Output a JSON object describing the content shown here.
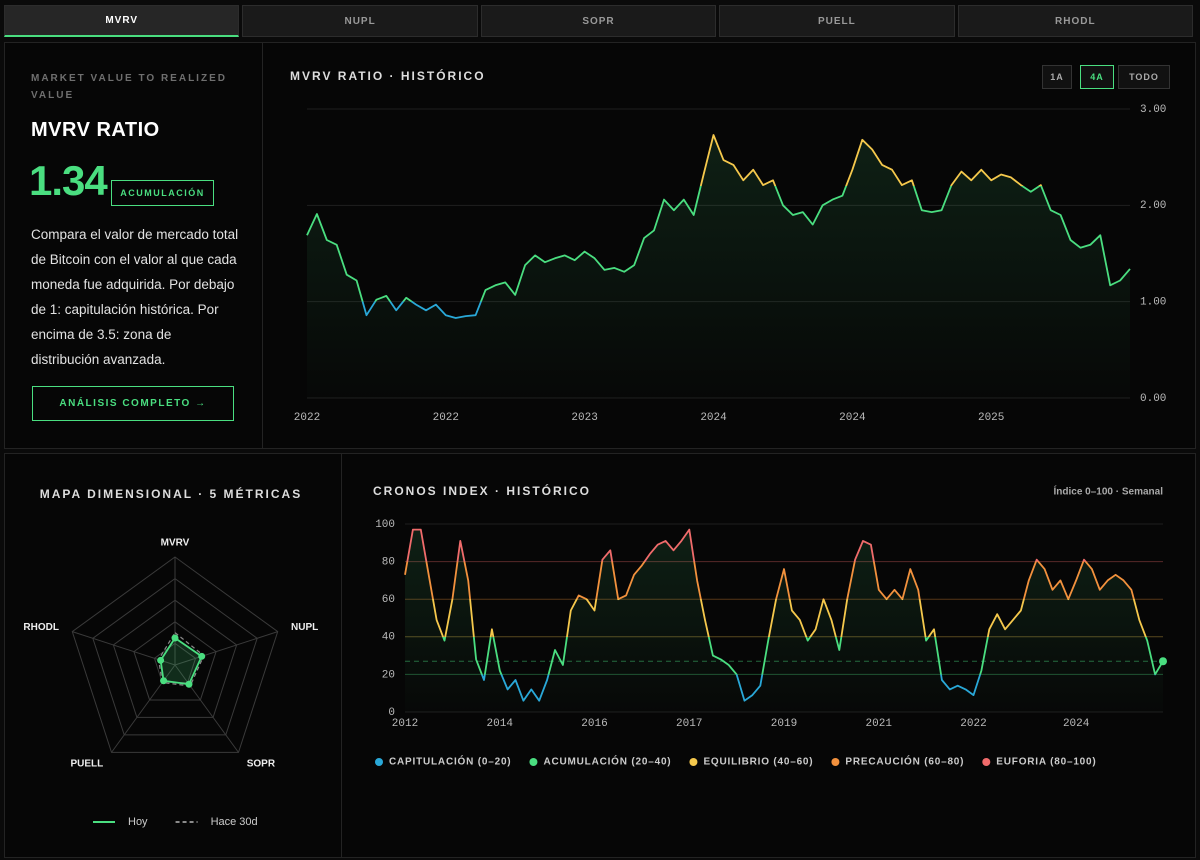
{
  "tabs": {
    "items": [
      "MVRV",
      "NUPL",
      "SOPR",
      "PUELL",
      "RHODL"
    ],
    "active": 0
  },
  "metric_panel": {
    "eyebrow": "MARKET VALUE TO REALIZED VALUE",
    "title": "MVRV RATIO",
    "value": "1.34",
    "badge": "ACUMULACIÓN",
    "description": "Compara el valor de mercado total de Bitcoin con el valor al que cada moneda fue adquirida. Por debajo de 1: capitulación histórica. Por encima de 3.5: zona de distribución avanzada.",
    "button": "ANÁLISIS COMPLETO →"
  },
  "range_buttons": {
    "items": [
      "1A",
      "4A",
      "TODO"
    ],
    "active": 1
  },
  "chart_data": [
    {
      "type": "line",
      "title": "MVRV RATIO · HISTÓRICO",
      "values": [
        1.69,
        1.91,
        1.64,
        1.59,
        1.28,
        1.22,
        0.86,
        1.02,
        1.06,
        0.91,
        1.04,
        0.97,
        0.91,
        0.97,
        0.86,
        0.83,
        0.85,
        0.86,
        1.12,
        1.17,
        1.2,
        1.07,
        1.38,
        1.48,
        1.41,
        1.45,
        1.48,
        1.43,
        1.52,
        1.45,
        1.33,
        1.35,
        1.31,
        1.38,
        1.66,
        1.74,
        2.06,
        1.95,
        2.06,
        1.9,
        2.32,
        2.73,
        2.47,
        2.42,
        2.26,
        2.37,
        2.21,
        2.26,
        2.0,
        1.9,
        1.93,
        1.8,
        2.0,
        2.06,
        2.1,
        2.37,
        2.68,
        2.58,
        2.42,
        2.37,
        2.21,
        2.26,
        1.95,
        1.93,
        1.95,
        2.21,
        2.35,
        2.26,
        2.37,
        2.26,
        2.32,
        2.29,
        2.21,
        2.14,
        2.21,
        1.95,
        1.9,
        1.64,
        1.56,
        1.59,
        1.69,
        1.17,
        1.22,
        1.34
      ],
      "xticks": [
        {
          "value": 0,
          "label": "2022"
        },
        {
          "value": 14,
          "label": "2022"
        },
        {
          "value": 28,
          "label": "2023"
        },
        {
          "value": 41,
          "label": "2024"
        },
        {
          "value": 55,
          "label": "2024"
        },
        {
          "value": 69,
          "label": "2025"
        }
      ],
      "ylim": [
        0,
        3
      ],
      "yticks": [
        {
          "value": 3,
          "label": "3.00"
        },
        {
          "value": 2,
          "label": "2.00"
        },
        {
          "value": 1,
          "label": "1.00"
        },
        {
          "value": 0,
          "label": "0.00"
        }
      ],
      "color_scale": [
        {
          "from": 0,
          "to": 1,
          "color": "#29a8d8"
        },
        {
          "from": 1,
          "to": 2.2,
          "color": "#4ade80"
        },
        {
          "from": 2.2,
          "to": 3,
          "color": "#f5c84c"
        }
      ],
      "grid": true
    },
    {
      "type": "radar",
      "title": "MAPA DIMENSIONAL · 5 MÉTRICAS",
      "axes": [
        "MVRV",
        "NUPL",
        "SOPR",
        "PUELL",
        "RHODL"
      ],
      "rlim": [
        0,
        100
      ],
      "rings": 5,
      "series": [
        {
          "name": "Hoy",
          "color": "#4ade80",
          "values": [
            25,
            26,
            22,
            18,
            14
          ]
        },
        {
          "name": "Hace 30d",
          "color": "#8a8a8a",
          "dashed": true,
          "values": [
            30,
            28,
            24,
            20,
            16
          ]
        }
      ]
    },
    {
      "type": "line",
      "title": "CRONOS INDEX · HISTÓRICO",
      "subtitle": "Índice 0–100 · Semanal",
      "values": [
        73,
        97,
        97,
        73,
        49,
        38,
        60,
        91,
        70,
        28,
        17,
        44,
        22,
        12,
        17,
        6,
        12,
        6,
        17,
        33,
        25,
        54,
        62,
        60,
        54,
        81,
        86,
        60,
        62,
        73,
        78,
        84,
        89,
        91,
        86,
        91,
        97,
        70,
        49,
        30,
        28,
        25,
        20,
        6,
        9,
        14,
        38,
        60,
        76,
        54,
        49,
        38,
        44,
        60,
        49,
        33,
        60,
        81,
        91,
        89,
        65,
        60,
        65,
        60,
        76,
        65,
        38,
        44,
        17,
        12,
        14,
        12,
        9,
        22,
        44,
        52,
        44,
        49,
        54,
        70,
        81,
        76,
        65,
        70,
        60,
        70,
        81,
        76,
        65,
        70,
        73,
        70,
        65,
        49,
        38,
        20,
        27
      ],
      "xticks": [
        {
          "value": 0,
          "label": "2012"
        },
        {
          "value": 12,
          "label": "2014"
        },
        {
          "value": 24,
          "label": "2016"
        },
        {
          "value": 36,
          "label": "2017"
        },
        {
          "value": 48,
          "label": "2019"
        },
        {
          "value": 60,
          "label": "2021"
        },
        {
          "value": 72,
          "label": "2022"
        },
        {
          "value": 85,
          "label": "2024"
        }
      ],
      "ylim": [
        0,
        100
      ],
      "yticks": [
        0,
        20,
        40,
        60,
        80,
        100
      ],
      "reference_line": 27,
      "marker_last": true,
      "grid": true,
      "bands": [
        {
          "name": "CAPITULACIÓN (0–20)",
          "from": 0,
          "to": 20,
          "color": "#29a8d8"
        },
        {
          "name": "ACUMULACIÓN (20–40)",
          "from": 20,
          "to": 40,
          "color": "#4ade80"
        },
        {
          "name": "EQUILIBRIO (40–60)",
          "from": 40,
          "to": 60,
          "color": "#f5c84c"
        },
        {
          "name": "PRECAUCIÓN (60–80)",
          "from": 60,
          "to": 80,
          "color": "#f2913d"
        },
        {
          "name": "EUFORIA (80–100)",
          "from": 80,
          "to": 100,
          "color": "#f06b6b"
        }
      ]
    }
  ]
}
